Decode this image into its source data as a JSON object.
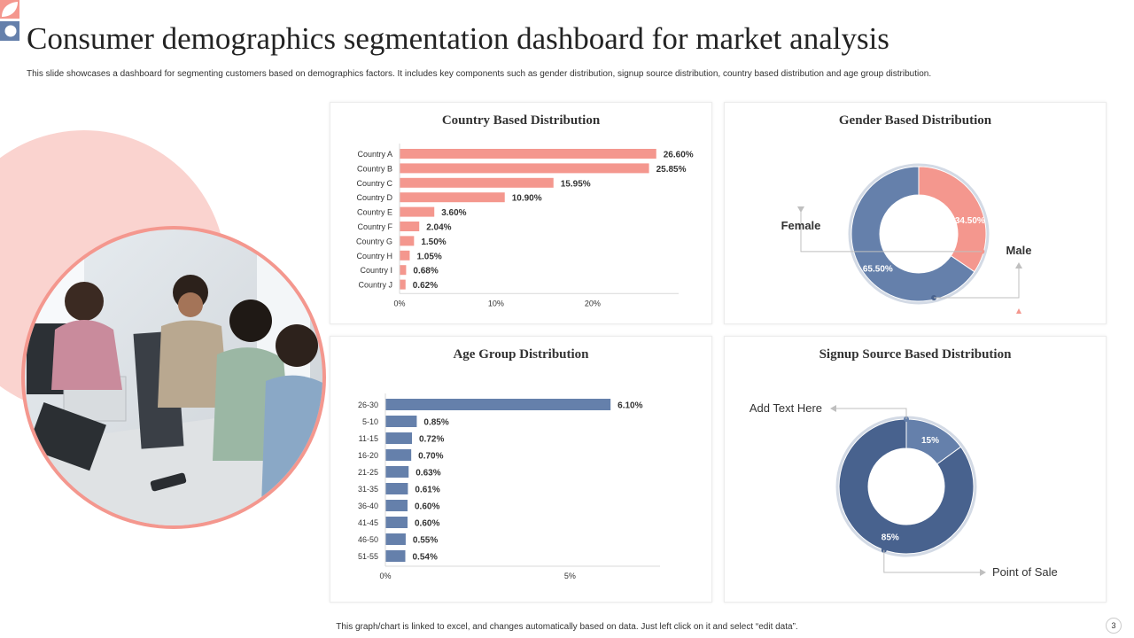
{
  "header": {
    "title": "Consumer demographics segmentation dashboard for market analysis",
    "subtitle": "This slide showcases a dashboard for segmenting customers based on demographics factors. It includes key components such as gender distribution, signup source distribution, country based distribution and age group distribution."
  },
  "footer": {
    "note": "This graph/chart is linked to excel, and changes automatically based on data. Just left click on it and select “edit data”.",
    "page_number": "3"
  },
  "colors": {
    "salmon": "#f4978e",
    "blue": "#6580ab",
    "dark_blue": "#48628e",
    "light_pink": "#fad3cf"
  },
  "chart_data": [
    {
      "type": "bar",
      "orientation": "horizontal",
      "title": "Country  Based Distribution",
      "categories": [
        "Country A",
        "Country B",
        "Country C",
        "Country D",
        "Country E",
        "Country F",
        "Country G",
        "Country H",
        "Country I",
        "Country J"
      ],
      "values": [
        26.6,
        25.85,
        15.95,
        10.9,
        3.6,
        2.04,
        1.5,
        1.05,
        0.68,
        0.62
      ],
      "value_labels": [
        "26.60%",
        "25.85%",
        "15.95%",
        "10.90%",
        "3.60%",
        "2.04%",
        "1.50%",
        "1.05%",
        "0.68%",
        "0.62%"
      ],
      "xlim": [
        0,
        28
      ],
      "xticks": [
        0,
        10,
        20
      ],
      "xtick_labels": [
        "0%",
        "10%",
        "20%"
      ],
      "color": "#f4978e"
    },
    {
      "type": "pie",
      "style": "donut",
      "title": "Gender Based Distribution",
      "series": [
        {
          "name": "Female",
          "value": 34.5,
          "label": "34.50%",
          "color": "#f4978e"
        },
        {
          "name": "Male",
          "value": 65.5,
          "label": "65.50%",
          "color": "#6580ab"
        }
      ]
    },
    {
      "type": "bar",
      "orientation": "horizontal",
      "title": "Age Group  Distribution",
      "categories": [
        "26-30",
        "5-10",
        "11-15",
        "16-20",
        "21-25",
        "31-35",
        "36-40",
        "41-45",
        "46-50",
        "51-55"
      ],
      "values": [
        6.1,
        0.85,
        0.72,
        0.7,
        0.63,
        0.61,
        0.6,
        0.6,
        0.55,
        0.54
      ],
      "value_labels": [
        "6.10%",
        "0.85%",
        "0.72%",
        "0.70%",
        "0.63%",
        "0.61%",
        "0.60%",
        "0.60%",
        "0.55%",
        "0.54%"
      ],
      "xlim": [
        0,
        7.2
      ],
      "xticks": [
        0,
        5
      ],
      "xtick_labels": [
        "0%",
        "5%"
      ],
      "color": "#6580ab"
    },
    {
      "type": "pie",
      "style": "donut",
      "title": "Signup  Source Based Distribution",
      "series": [
        {
          "name": "Add Text Here",
          "value": 15,
          "label": "15%",
          "color": "#6580ab"
        },
        {
          "name": "Point of Sale",
          "value": 85,
          "label": "85%",
          "color": "#48628e"
        }
      ]
    }
  ]
}
